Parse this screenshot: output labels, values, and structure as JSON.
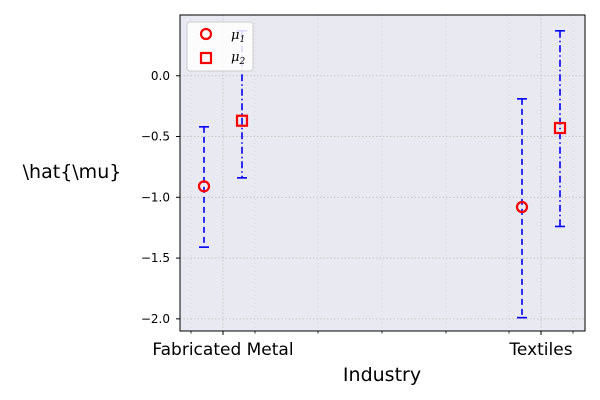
{
  "chart_data": {
    "type": "scatter",
    "xlabel": "Industry",
    "ylabel": "\\hat{\\mu}",
    "categories": [
      "Fabricated Metal",
      "Textiles"
    ],
    "ylim": [
      -2.1,
      0.5
    ],
    "yticks": [
      -2.0,
      -1.5,
      -1.0,
      -0.5,
      0.0
    ],
    "ytick_labels": [
      "−2.0",
      "−1.5",
      "−1.0",
      "−0.5",
      "0.0"
    ],
    "grid": true,
    "legend_position": "upper-left",
    "series": [
      {
        "name": "μ",
        "subscript": "1",
        "marker": "circle",
        "errorbar_style": "dashed",
        "values": [
          -0.91,
          -1.08
        ],
        "lower": [
          -1.41,
          -1.99
        ],
        "upper": [
          -0.42,
          -0.19
        ]
      },
      {
        "name": "μ",
        "subscript": "2",
        "marker": "square",
        "errorbar_style": "dashdot",
        "values": [
          -0.37,
          -0.43
        ],
        "lower": [
          -0.84,
          -1.24
        ],
        "upper": [
          0.37,
          0.37
        ]
      }
    ],
    "colors": {
      "marker": "#ff0000",
      "errorbar": "#0000ff",
      "plot_background": "#e9e9f1",
      "grid": "#c0c0c0"
    }
  }
}
